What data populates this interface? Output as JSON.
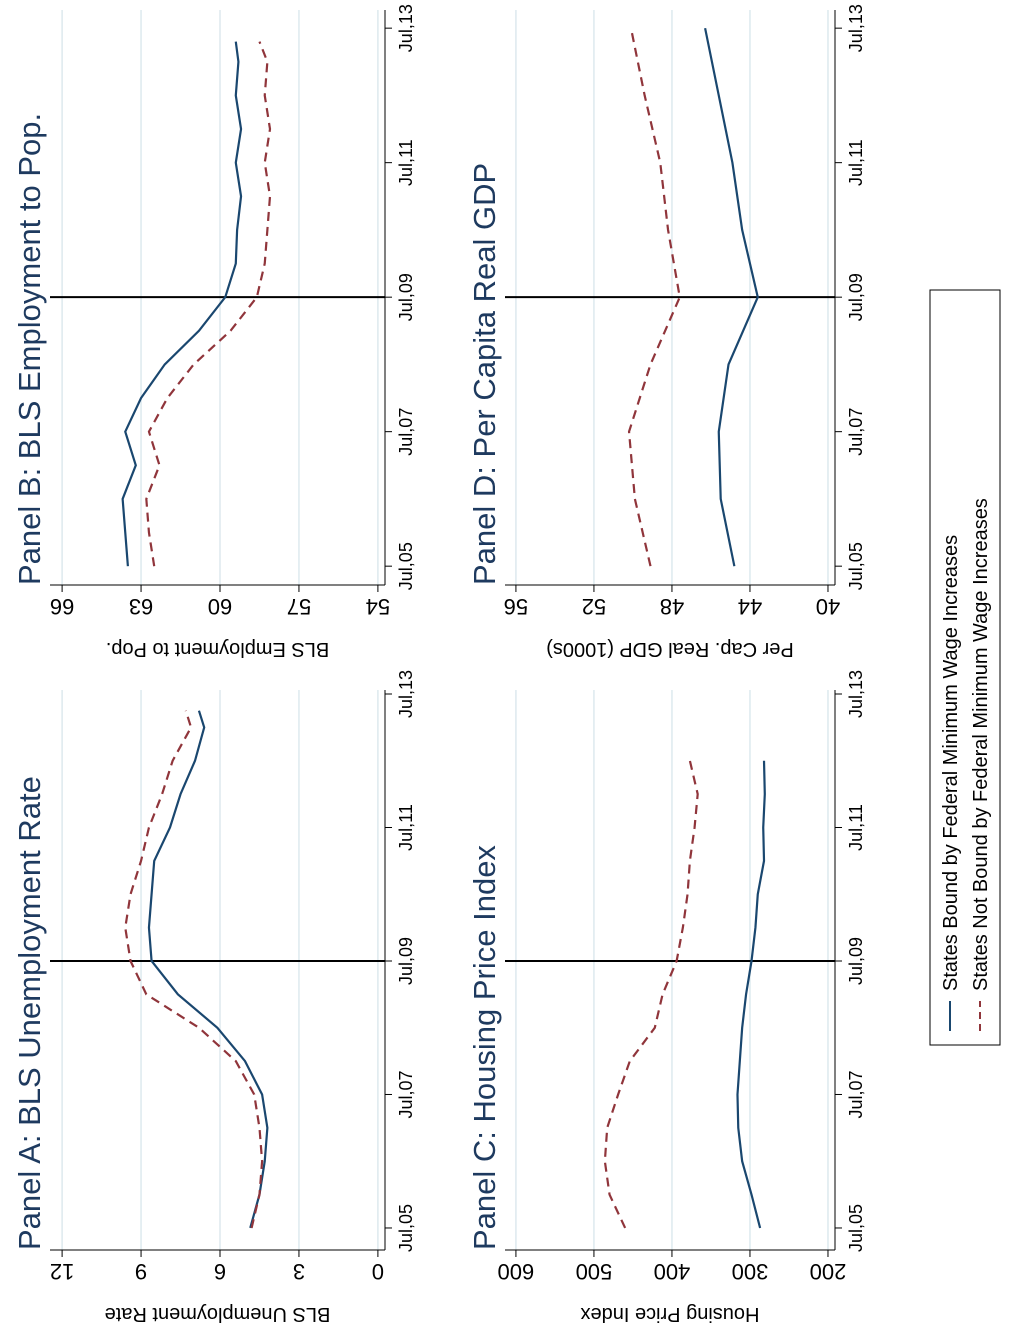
{
  "chart_data": [
    {
      "type": "line",
      "title": "Panel A: BLS Unemployment Rate",
      "y_label": "BLS Unemployment Rate",
      "x": [
        2005.5,
        2006,
        2006.5,
        2007,
        2007.5,
        2008,
        2008.5,
        2009,
        2009.5,
        2010,
        2010.5,
        2011,
        2011.5,
        2012,
        2012.5,
        2013,
        2013.25
      ],
      "series": [
        {
          "name": "States Bound by Federal Minimum Wage Increases",
          "color": "#1a476f",
          "dash": "solid",
          "values": [
            4.85,
            4.5,
            4.3,
            4.2,
            4.4,
            5.05,
            6.1,
            7.6,
            8.6,
            8.7,
            8.6,
            8.5,
            7.9,
            7.5,
            6.95,
            6.6,
            6.8
          ]
        },
        {
          "name": "States Not Bound by Federal Minimum Wage Increases",
          "color": "#90353b",
          "dash": "dashed",
          "values": [
            4.8,
            4.5,
            4.4,
            4.5,
            4.7,
            5.4,
            6.8,
            8.8,
            9.4,
            9.6,
            9.4,
            9.0,
            8.7,
            8.2,
            7.8,
            7.1,
            7.3
          ]
        }
      ],
      "xlim": [
        2005.17,
        2013.56
      ],
      "ylim": [
        -0.27,
        12.46
      ],
      "xticks": [
        {
          "value": 2005.5,
          "label": "Jul,05"
        },
        {
          "value": 2007.5,
          "label": "Jul,07"
        },
        {
          "value": 2009.5,
          "label": "Jul,09"
        },
        {
          "value": 2011.5,
          "label": "Jul,11"
        },
        {
          "value": 2013.5,
          "label": "Jul,13"
        }
      ],
      "yticks": [
        0,
        3,
        6,
        9,
        12
      ],
      "grid": true,
      "vline": 2009.5
    },
    {
      "type": "line",
      "title": "Panel B: BLS Employment to Pop.",
      "y_label": "BLS Employment to Pop.",
      "x": [
        2005.5,
        2006,
        2006.5,
        2007,
        2007.5,
        2008,
        2008.5,
        2009,
        2009.5,
        2010,
        2010.5,
        2011,
        2011.5,
        2012,
        2012.5,
        2013,
        2013.3
      ],
      "series": [
        {
          "color": "#1a476f",
          "dash": "solid",
          "values": [
            63.5,
            63.6,
            63.7,
            63.2,
            63.6,
            63.0,
            62.1,
            60.8,
            59.8,
            59.4,
            59.35,
            59.2,
            59.4,
            59.2,
            59.4,
            59.3,
            59.4
          ]
        },
        {
          "color": "#90353b",
          "dash": "dashed",
          "values": [
            62.5,
            62.7,
            62.8,
            62.3,
            62.7,
            62.0,
            61.0,
            59.6,
            58.6,
            58.3,
            58.2,
            58.1,
            58.3,
            58.1,
            58.3,
            58.2,
            58.5
          ]
        }
      ],
      "xlim": [
        2005.22,
        2013.77
      ],
      "ylim": [
        53.73,
        66.46
      ],
      "xticks": [
        {
          "value": 2005.5,
          "label": "Jul,05"
        },
        {
          "value": 2007.5,
          "label": "Jul,07"
        },
        {
          "value": 2009.5,
          "label": "Jul,09"
        },
        {
          "value": 2011.5,
          "label": "Jul,11"
        },
        {
          "value": 2013.5,
          "label": "Jul,13"
        }
      ],
      "yticks": [
        54,
        57,
        60,
        63,
        66
      ],
      "grid": true,
      "vline": 2009.5
    },
    {
      "type": "line",
      "title": "Panel C: Housing Price Index",
      "y_label": "Housing Price Index",
      "x": [
        2005.5,
        2006,
        2006.5,
        2007,
        2007.5,
        2008,
        2008.5,
        2009,
        2009.5,
        2010,
        2010.5,
        2011,
        2011.5,
        2012,
        2012.5
      ],
      "series": [
        {
          "color": "#1a476f",
          "dash": "solid",
          "values": [
            287,
            298,
            310,
            315,
            316,
            313,
            310,
            305,
            298,
            293,
            290,
            282,
            283,
            281,
            282
          ]
        },
        {
          "color": "#90353b",
          "dash": "dashed",
          "values": [
            460,
            480,
            486,
            483,
            469,
            454,
            422,
            412,
            394,
            386,
            380,
            377,
            371,
            367,
            377
          ]
        }
      ],
      "xlim": [
        2005.17,
        2013.56
      ],
      "ylim": [
        191,
        614
      ],
      "xticks": [
        {
          "value": 2005.5,
          "label": "Jul,05"
        },
        {
          "value": 2007.5,
          "label": "Jul,07"
        },
        {
          "value": 2009.5,
          "label": "Jul,09"
        },
        {
          "value": 2011.5,
          "label": "Jul,11"
        },
        {
          "value": 2013.5,
          "label": "Jul,13"
        }
      ],
      "yticks": [
        200,
        300,
        400,
        500,
        600
      ],
      "grid": true,
      "vline": 2009.5
    },
    {
      "type": "line",
      "title": "Panel D: Per Capita Real GDP",
      "y_label": "Per Cap. Real GDP (1000s)",
      "x": [
        2005.5,
        2006.5,
        2007.5,
        2008.5,
        2009.5,
        2010.5,
        2011.5,
        2012.5,
        2013.5
      ],
      "series": [
        {
          "color": "#1a476f",
          "dash": "solid",
          "values": [
            44.8,
            45.5,
            45.6,
            45.1,
            43.6,
            44.4,
            44.9,
            45.6,
            46.3
          ]
        },
        {
          "color": "#90353b",
          "dash": "dashed",
          "values": [
            49.1,
            49.9,
            50.2,
            49.1,
            47.6,
            48.2,
            48.6,
            49.4,
            50.1
          ]
        }
      ],
      "xlim": [
        2005.22,
        2013.77
      ],
      "ylim": [
        39.64,
        56.56
      ],
      "xticks": [
        {
          "value": 2005.5,
          "label": "Jul,05"
        },
        {
          "value": 2007.5,
          "label": "Jul,07"
        },
        {
          "value": 2009.5,
          "label": "Jul,09"
        },
        {
          "value": 2011.5,
          "label": "Jul,11"
        },
        {
          "value": 2013.5,
          "label": "Jul,13"
        }
      ],
      "yticks": [
        40,
        44,
        48,
        52,
        56
      ],
      "grid": true,
      "vline": 2009.5
    }
  ]
}
